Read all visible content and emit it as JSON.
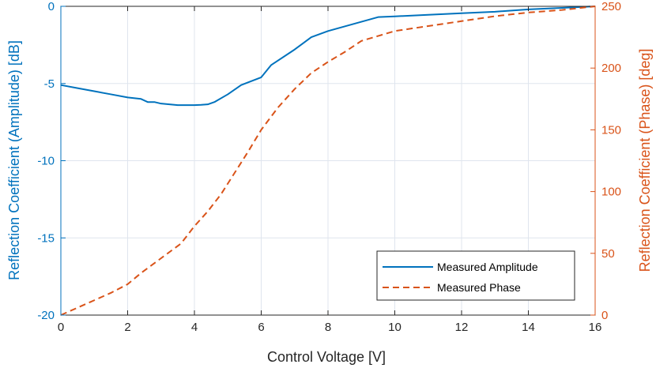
{
  "chart_data": {
    "type": "line",
    "title": "",
    "xlabel": "Control Voltage [V]",
    "ylabel_left": "Reflection Coefficient (Amplitude) [dB]",
    "ylabel_right": "Reflection Coefficient (Phase) [deg]",
    "xlim": [
      0,
      16
    ],
    "ylim_left": [
      -20,
      0
    ],
    "ylim_right": [
      0,
      250
    ],
    "x_ticks": [
      "0",
      "2",
      "4",
      "6",
      "8",
      "10",
      "12",
      "14",
      "16"
    ],
    "y_left_ticks": [
      "-20",
      "-15",
      "-10",
      "-5",
      "0"
    ],
    "y_right_ticks": [
      "0",
      "50",
      "100",
      "150",
      "200",
      "250"
    ],
    "grid": true,
    "legend_position": "lower-right",
    "colors": {
      "amplitude": "#0072BD",
      "phase": "#D95319",
      "grid": "#dfe5ee"
    },
    "series": [
      {
        "name": "Measured Amplitude",
        "axis": "left",
        "style": "solid",
        "x": [
          0,
          0.5,
          1,
          1.5,
          2,
          2.4,
          2.6,
          2.8,
          3,
          3.5,
          4,
          4.2,
          4.4,
          4.6,
          5,
          5.4,
          6,
          6.3,
          7,
          7.5,
          8,
          9,
          9.5,
          10,
          11,
          12,
          13,
          14,
          15,
          16
        ],
        "values": [
          -5.1,
          -5.3,
          -5.5,
          -5.7,
          -5.9,
          -6.0,
          -6.2,
          -6.2,
          -6.3,
          -6.4,
          -6.4,
          -6.38,
          -6.35,
          -6.2,
          -5.7,
          -5.1,
          -4.6,
          -3.8,
          -2.8,
          -2.0,
          -1.6,
          -1.0,
          -0.7,
          -0.65,
          -0.55,
          -0.45,
          -0.35,
          -0.2,
          -0.1,
          0.0
        ]
      },
      {
        "name": "Measured Phase",
        "axis": "right",
        "style": "dashed",
        "x": [
          0,
          0.5,
          1,
          1.5,
          2,
          2.4,
          2.8,
          3.2,
          3.6,
          4,
          4.4,
          4.8,
          5.2,
          5.6,
          6,
          6.5,
          7,
          7.5,
          8,
          8.5,
          9,
          9.5,
          10,
          11,
          12,
          13,
          14,
          15,
          16
        ],
        "values": [
          0,
          6,
          12,
          18,
          25,
          34,
          42,
          50,
          58,
          72,
          84,
          98,
          115,
          132,
          150,
          168,
          183,
          196,
          205,
          213,
          222,
          226,
          230,
          234,
          238,
          242,
          245,
          247,
          250
        ]
      }
    ]
  }
}
